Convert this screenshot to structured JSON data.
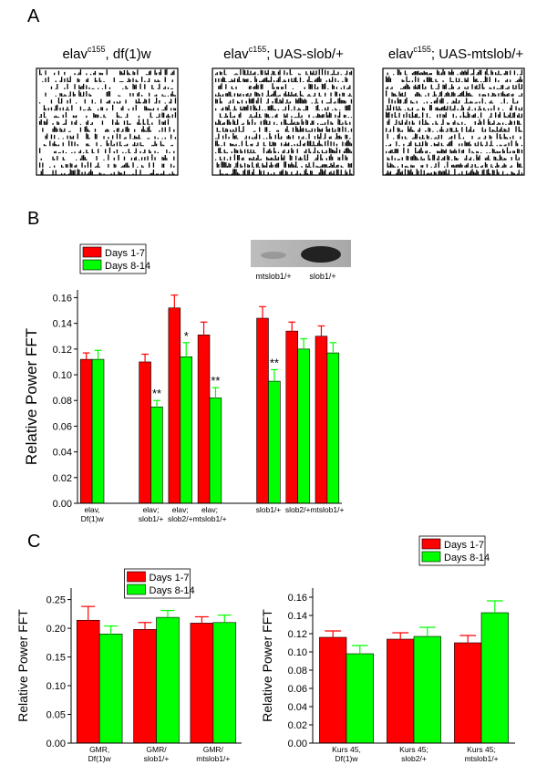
{
  "panel_labels": [
    "A",
    "B",
    "C"
  ],
  "panel_a": {
    "titles": [
      {
        "base": "elav",
        "sup": "c155",
        "rest": ", df(1)w"
      },
      {
        "base": "elav",
        "sup": "c155",
        "rest": "; UAS-slob/+"
      },
      {
        "base": "elav",
        "sup": "c155",
        "rest": "; UAS-mtslob/+"
      }
    ]
  },
  "blot": {
    "labels": [
      "mtslob1/+",
      "slob1/+"
    ]
  },
  "chart_data": [
    {
      "type": "bar",
      "y_label": "Relative Power FFT",
      "legend": "upper left",
      "categories": [
        [
          "elav,",
          "Df(1)w"
        ],
        null,
        [
          "elav;",
          "slob1/+"
        ],
        [
          "elav;",
          "slob2/+"
        ],
        [
          "elav;",
          "mtslob1/+"
        ],
        null,
        [
          "slob1/+"
        ],
        [
          "slob2/+"
        ],
        [
          "mtslob1/+"
        ]
      ],
      "series": [
        {
          "name": "Days 1-7",
          "color": "#ff0000",
          "values": [
            0.112,
            null,
            0.11,
            0.152,
            0.131,
            null,
            0.144,
            0.134,
            0.13
          ],
          "errors": [
            0.005,
            null,
            0.006,
            0.01,
            0.01,
            null,
            0.009,
            0.007,
            0.008
          ]
        },
        {
          "name": "Days 8-14",
          "color": "#00ff00",
          "values": [
            0.112,
            null,
            0.075,
            0.114,
            0.082,
            null,
            0.095,
            0.12,
            0.117
          ],
          "errors": [
            0.007,
            null,
            0.005,
            0.011,
            0.008,
            null,
            0.009,
            0.008,
            0.008
          ],
          "significance": [
            null,
            null,
            "**",
            "*",
            "**",
            null,
            "**",
            null,
            null
          ]
        }
      ],
      "ylim": [
        0,
        0.166
      ],
      "yticks": [
        {
          "value": 0,
          "label": "0.00"
        },
        {
          "value": 0.02,
          "label": "0.02"
        },
        {
          "value": 0.04,
          "label": "0.04"
        },
        {
          "value": 0.06,
          "label": "0.06"
        },
        {
          "value": 0.08,
          "label": "0.08"
        },
        {
          "value": 0.1,
          "label": "0.10"
        },
        {
          "value": 0.12,
          "label": "0.12"
        },
        {
          "value": 0.14,
          "label": "0.14"
        },
        {
          "value": 0.16,
          "label": "0.16"
        }
      ]
    },
    {
      "type": "bar",
      "y_label": "Relative Power FFT",
      "legend": "upper center",
      "categories": [
        [
          "GMR,",
          "Df(1)w"
        ],
        [
          "GMR/",
          "slob1/+"
        ],
        [
          "GMR/",
          "mtslob1/+"
        ]
      ],
      "series": [
        {
          "name": "Days 1-7",
          "color": "#ff0000",
          "values": [
            0.214,
            0.198,
            0.209
          ],
          "errors": [
            0.024,
            0.012,
            0.011
          ]
        },
        {
          "name": "Days 8-14",
          "color": "#00ff00",
          "values": [
            0.19,
            0.219,
            0.21
          ],
          "errors": [
            0.014,
            0.012,
            0.013
          ]
        }
      ],
      "ylim": [
        0,
        0.27
      ],
      "yticks": [
        {
          "value": 0,
          "label": "0.00"
        },
        {
          "value": 0.05,
          "label": "0.05"
        },
        {
          "value": 0.1,
          "label": "0.10"
        },
        {
          "value": 0.15,
          "label": "0.15"
        },
        {
          "value": 0.2,
          "label": "0.20"
        },
        {
          "value": 0.25,
          "label": "0.25"
        }
      ]
    },
    {
      "type": "bar",
      "y_label": "Relative Power FFT",
      "legend": "upper right",
      "categories": [
        [
          "Kurs 45,",
          "Df(1)w"
        ],
        [
          "Kurs 45;",
          "slob2/+"
        ],
        [
          "Kurs 45;",
          "mtslob1/+"
        ]
      ],
      "series": [
        {
          "name": "Days 1-7",
          "color": "#ff0000",
          "values": [
            0.116,
            0.114,
            0.11
          ],
          "errors": [
            0.007,
            0.007,
            0.008
          ]
        },
        {
          "name": "Days 8-14",
          "color": "#00ff00",
          "values": [
            0.098,
            0.117,
            0.143
          ],
          "errors": [
            0.009,
            0.01,
            0.013
          ]
        }
      ],
      "ylim": [
        0,
        0.17
      ],
      "yticks": [
        {
          "value": 0,
          "label": "0.00"
        },
        {
          "value": 0.02,
          "label": "0.02"
        },
        {
          "value": 0.04,
          "label": "0.04"
        },
        {
          "value": 0.06,
          "label": "0.06"
        },
        {
          "value": 0.08,
          "label": "0.08"
        },
        {
          "value": 0.1,
          "label": "0.10"
        },
        {
          "value": 0.12,
          "label": "0.12"
        },
        {
          "value": 0.14,
          "label": "0.14"
        },
        {
          "value": 0.16,
          "label": "0.16"
        }
      ]
    }
  ]
}
